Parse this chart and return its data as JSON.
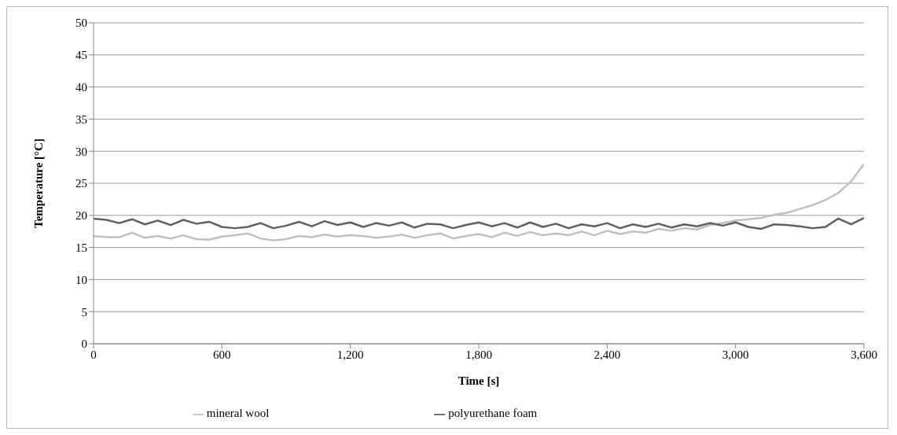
{
  "chart_data": {
    "type": "line",
    "xlabel": "Time  [s]",
    "ylabel": "Temperature  [°C]",
    "x": [
      0,
      60,
      120,
      180,
      240,
      300,
      360,
      420,
      480,
      540,
      600,
      660,
      720,
      780,
      840,
      900,
      960,
      1020,
      1080,
      1140,
      1200,
      1260,
      1320,
      1380,
      1440,
      1500,
      1560,
      1620,
      1680,
      1740,
      1800,
      1860,
      1920,
      1980,
      2040,
      2100,
      2160,
      2220,
      2280,
      2340,
      2400,
      2460,
      2520,
      2580,
      2640,
      2700,
      2760,
      2820,
      2880,
      2940,
      3000,
      3060,
      3120,
      3180,
      3240,
      3300,
      3360,
      3420,
      3480,
      3540,
      3600
    ],
    "series": [
      {
        "name": "mineral wool",
        "color": "#c0c0c0",
        "values": [
          16.8,
          16.6,
          16.6,
          17.3,
          16.5,
          16.8,
          16.4,
          16.9,
          16.3,
          16.2,
          16.7,
          16.9,
          17.2,
          16.4,
          16.1,
          16.3,
          16.8,
          16.6,
          17.0,
          16.7,
          16.9,
          16.8,
          16.5,
          16.7,
          17.0,
          16.5,
          16.9,
          17.2,
          16.4,
          16.8,
          17.1,
          16.6,
          17.3,
          16.8,
          17.4,
          16.9,
          17.2,
          16.9,
          17.5,
          16.9,
          17.6,
          17.1,
          17.5,
          17.3,
          17.9,
          17.6,
          18.0,
          17.8,
          18.5,
          18.8,
          19.2,
          19.4,
          19.6,
          20.1,
          20.4,
          21.0,
          21.6,
          22.4,
          23.5,
          25.3,
          28.0
        ]
      },
      {
        "name": "polyurethane foam",
        "color": "#606060",
        "values": [
          19.5,
          19.3,
          18.8,
          19.4,
          18.6,
          19.2,
          18.5,
          19.3,
          18.7,
          19.0,
          18.2,
          18.0,
          18.2,
          18.8,
          18.0,
          18.4,
          19.0,
          18.3,
          19.1,
          18.5,
          18.9,
          18.2,
          18.8,
          18.4,
          18.9,
          18.1,
          18.7,
          18.6,
          18.0,
          18.5,
          18.9,
          18.3,
          18.8,
          18.1,
          18.9,
          18.2,
          18.7,
          18.0,
          18.6,
          18.3,
          18.8,
          18.0,
          18.6,
          18.2,
          18.7,
          18.1,
          18.6,
          18.3,
          18.8,
          18.4,
          18.9,
          18.2,
          17.9,
          18.6,
          18.5,
          18.3,
          18.0,
          18.2,
          19.5,
          18.6,
          19.6
        ]
      }
    ],
    "xlim": [
      0,
      3600
    ],
    "xticks": [
      0,
      600,
      {
        "value": 1200,
        "label": "1,200"
      },
      {
        "value": 1800,
        "label": "1,800"
      },
      {
        "value": 2400,
        "label": "2,400"
      },
      {
        "value": 3000,
        "label": "3,000"
      },
      {
        "value": 3600,
        "label": "3,600"
      }
    ],
    "ylim": [
      0,
      50
    ],
    "yticks": [
      0,
      5,
      10,
      15,
      20,
      25,
      30,
      35,
      40,
      45,
      50
    ],
    "grid": "y",
    "legend": "bottom",
    "marker": "none",
    "line_style": "solid"
  }
}
